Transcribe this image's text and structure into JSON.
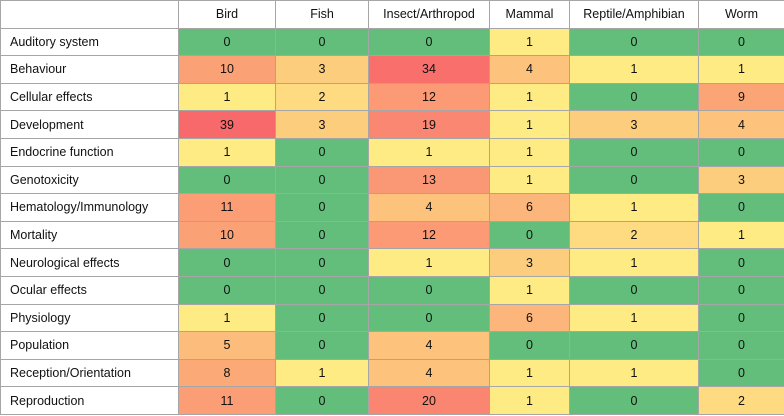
{
  "chart_data": {
    "type": "heatmap",
    "columns": [
      "Bird",
      "Fish",
      "Insect/Arthropod",
      "Mammal",
      "Reptile/Amphibian",
      "Worm"
    ],
    "rows": [
      {
        "label": "Auditory system",
        "values": [
          0,
          0,
          0,
          1,
          0,
          0
        ]
      },
      {
        "label": "Behaviour",
        "values": [
          10,
          3,
          34,
          4,
          1,
          1
        ]
      },
      {
        "label": "Cellular effects",
        "values": [
          1,
          2,
          12,
          1,
          0,
          9
        ]
      },
      {
        "label": "Development",
        "values": [
          39,
          3,
          19,
          1,
          3,
          4
        ]
      },
      {
        "label": "Endocrine function",
        "values": [
          1,
          0,
          1,
          1,
          0,
          0
        ]
      },
      {
        "label": "Genotoxicity",
        "values": [
          0,
          0,
          13,
          1,
          0,
          3
        ]
      },
      {
        "label": "Hematology/Immunology",
        "values": [
          11,
          0,
          4,
          6,
          1,
          0
        ]
      },
      {
        "label": "Mortality",
        "values": [
          10,
          0,
          12,
          0,
          2,
          1
        ]
      },
      {
        "label": "Neurological effects",
        "values": [
          0,
          0,
          1,
          3,
          1,
          0
        ]
      },
      {
        "label": "Ocular effects",
        "values": [
          0,
          0,
          0,
          1,
          0,
          0
        ]
      },
      {
        "label": "Physiology",
        "values": [
          1,
          0,
          0,
          6,
          1,
          0
        ]
      },
      {
        "label": "Population",
        "values": [
          5,
          0,
          4,
          0,
          0,
          0
        ]
      },
      {
        "label": "Reception/Orientation",
        "values": [
          8,
          1,
          4,
          1,
          1,
          0
        ]
      },
      {
        "label": "Reproduction",
        "values": [
          11,
          0,
          20,
          1,
          0,
          2
        ]
      }
    ],
    "color_scale": {
      "low": "#63be7b",
      "mid": "#ffeb84",
      "high": "#f8696b"
    }
  }
}
